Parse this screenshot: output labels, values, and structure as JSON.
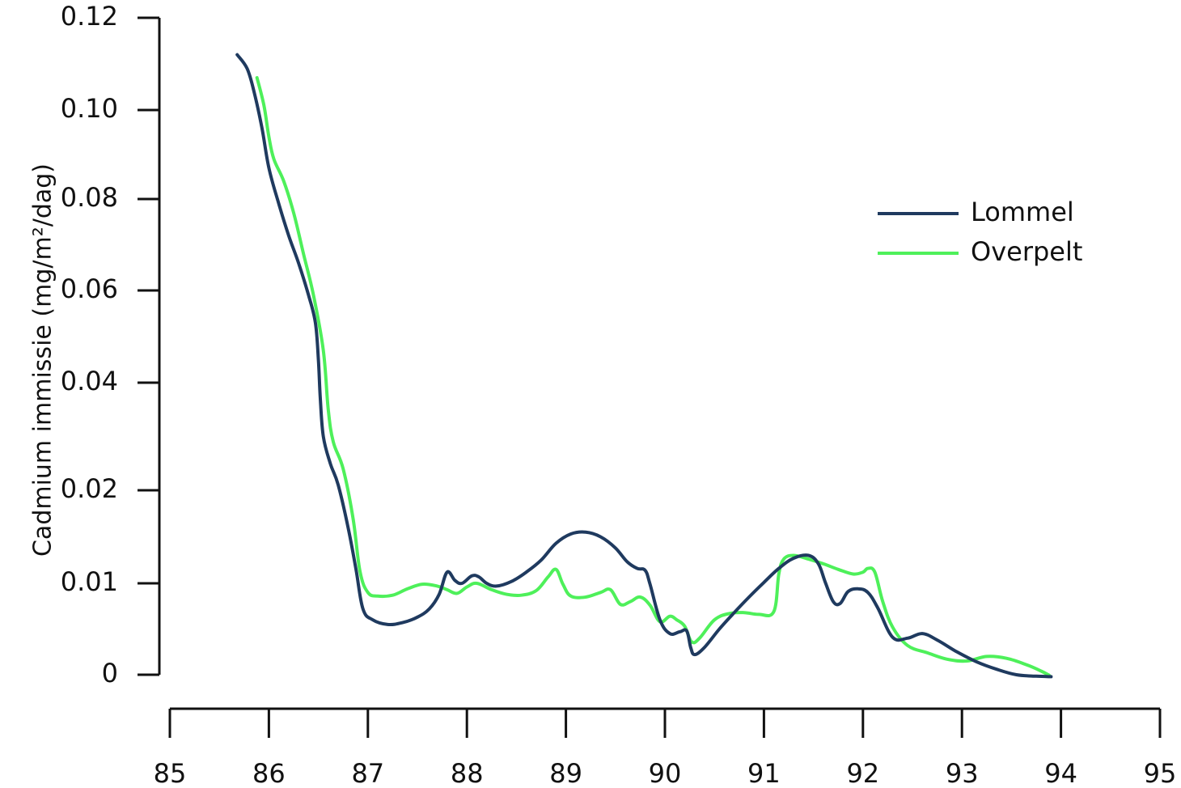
{
  "chart_data": {
    "type": "line",
    "title": "",
    "xlabel": "",
    "ylabel": "Cadmium immissie (mg/m²/dag)",
    "xlim": [
      85,
      95
    ],
    "y_tick_labels": [
      "0",
      "0.01",
      "0.02",
      "0.04",
      "0.06",
      "0.08",
      "0.10",
      "0.12"
    ],
    "x_tick_labels": [
      "85",
      "86",
      "87",
      "88",
      "89",
      "90",
      "91",
      "92",
      "93",
      "94",
      "95"
    ],
    "x_ticks": [
      85,
      86,
      87,
      88,
      89,
      90,
      91,
      92,
      93,
      94,
      95
    ],
    "grid": false,
    "legend_position": "right",
    "series": [
      {
        "name": "Lommel",
        "color": "#1f3a5f",
        "x": [
          85.68,
          85.78,
          85.85,
          85.93,
          86.0,
          86.1,
          86.2,
          86.3,
          86.4,
          86.47,
          86.5,
          86.52,
          86.55,
          86.62,
          86.7,
          86.8,
          86.88,
          86.95,
          87.05,
          87.2,
          87.35,
          87.5,
          87.62,
          87.72,
          87.8,
          87.88,
          87.95,
          88.05,
          88.12,
          88.2,
          88.3,
          88.45,
          88.6,
          88.75,
          88.9,
          89.05,
          89.2,
          89.35,
          89.5,
          89.62,
          89.72,
          89.8,
          89.85,
          89.95,
          90.05,
          90.15,
          90.22,
          90.26,
          90.3,
          90.4,
          90.55,
          90.7,
          90.85,
          91.0,
          91.15,
          91.3,
          91.45,
          91.55,
          91.62,
          91.7,
          91.77,
          91.85,
          91.95,
          92.05,
          92.15,
          92.3,
          92.45,
          92.6,
          92.75,
          92.95,
          93.15,
          93.35,
          93.55,
          93.75,
          93.9
        ],
        "y": [
          0.112,
          0.109,
          0.104,
          0.096,
          0.087,
          0.079,
          0.072,
          0.066,
          0.059,
          0.053,
          0.045,
          0.037,
          0.03,
          0.025,
          0.021,
          0.016,
          0.0115,
          0.0072,
          0.006,
          0.0055,
          0.0057,
          0.0063,
          0.0072,
          0.0088,
          0.0112,
          0.0103,
          0.01,
          0.0108,
          0.0107,
          0.01,
          0.0097,
          0.0102,
          0.0112,
          0.0125,
          0.0143,
          0.0153,
          0.0155,
          0.015,
          0.0138,
          0.0123,
          0.0116,
          0.0114,
          0.0099,
          0.006,
          0.0045,
          0.0047,
          0.0048,
          0.003,
          0.0022,
          0.003,
          0.005,
          0.0068,
          0.0085,
          0.0101,
          0.0116,
          0.0127,
          0.013,
          0.0121,
          0.0101,
          0.008,
          0.0078,
          0.0091,
          0.0094,
          0.009,
          0.0073,
          0.0041,
          0.004,
          0.0045,
          0.0038,
          0.0025,
          0.0014,
          0.0006,
          0.0,
          -0.0003,
          -0.0004
        ]
      },
      {
        "name": "Overpelt",
        "color": "#4ef05a",
        "x": [
          85.88,
          85.95,
          86.0,
          86.05,
          86.15,
          86.25,
          86.35,
          86.45,
          86.55,
          86.6,
          86.65,
          86.75,
          86.85,
          86.92,
          87.0,
          87.1,
          87.25,
          87.4,
          87.55,
          87.7,
          87.8,
          87.9,
          88.0,
          88.1,
          88.25,
          88.4,
          88.55,
          88.7,
          88.82,
          88.9,
          88.97,
          89.05,
          89.2,
          89.35,
          89.45,
          89.55,
          89.65,
          89.75,
          89.85,
          89.95,
          90.05,
          90.12,
          90.2,
          90.27,
          90.35,
          90.5,
          90.65,
          90.8,
          90.95,
          91.1,
          91.15,
          91.2,
          91.3,
          91.45,
          91.6,
          91.75,
          91.9,
          92.0,
          92.05,
          92.12,
          92.2,
          92.3,
          92.45,
          92.65,
          92.85,
          93.05,
          93.25,
          93.45,
          93.65,
          93.8,
          93.88
        ],
        "y": [
          0.107,
          0.101,
          0.094,
          0.089,
          0.084,
          0.077,
          0.068,
          0.059,
          0.047,
          0.035,
          0.029,
          0.024,
          0.017,
          0.0113,
          0.009,
          0.0086,
          0.0087,
          0.0094,
          0.0099,
          0.0097,
          0.0093,
          0.0089,
          0.0096,
          0.01,
          0.0093,
          0.0088,
          0.0087,
          0.0092,
          0.0107,
          0.0115,
          0.0099,
          0.0086,
          0.0085,
          0.009,
          0.0093,
          0.0077,
          0.008,
          0.0085,
          0.0076,
          0.0058,
          0.0064,
          0.006,
          0.0053,
          0.0036,
          0.004,
          0.006,
          0.0067,
          0.0068,
          0.0066,
          0.0069,
          0.011,
          0.0126,
          0.013,
          0.0126,
          0.0121,
          0.0115,
          0.011,
          0.0112,
          0.0116,
          0.0112,
          0.008,
          0.0052,
          0.0032,
          0.0024,
          0.0017,
          0.0015,
          0.002,
          0.0018,
          0.0011,
          0.0004,
          -0.0001
        ]
      }
    ]
  }
}
